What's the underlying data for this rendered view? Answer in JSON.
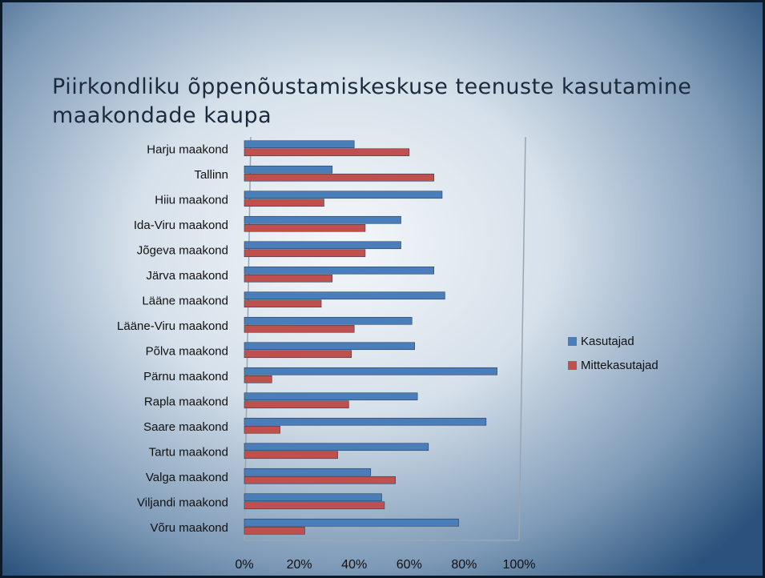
{
  "chart_data": {
    "type": "hbar",
    "title": "Piirkondliku õppenõustamiskeskuse teenuste kasutamine maakondade kaupa",
    "categories": [
      "Harju maakond",
      "Tallinn",
      "Hiiu maakond",
      "Ida-Viru maakond",
      "Jõgeva maakond",
      "Järva maakond",
      "Lääne maakond",
      "Lääne-Viru maakond",
      "Põlva maakond",
      "Pärnu maakond",
      "Rapla maakond",
      "Saare maakond",
      "Tartu maakond",
      "Valga maakond",
      "Viljandi maakond",
      "Võru maakond"
    ],
    "series": [
      {
        "name": "Kasutajad",
        "color": "#4a7ebb",
        "values": [
          40,
          32,
          72,
          57,
          57,
          69,
          73,
          61,
          62,
          92,
          63,
          88,
          67,
          46,
          50,
          78
        ]
      },
      {
        "name": "Mittekasutajad",
        "color": "#c0504d",
        "values": [
          60,
          69,
          29,
          44,
          44,
          32,
          28,
          40,
          39,
          10,
          38,
          13,
          34,
          55,
          51,
          22
        ]
      }
    ],
    "xlim": [
      0,
      100
    ],
    "xticks": [
      {
        "value": 0,
        "label": "0%"
      },
      {
        "value": 20,
        "label": "20%"
      },
      {
        "value": 40,
        "label": "40%"
      },
      {
        "value": 60,
        "label": "60%"
      },
      {
        "value": 80,
        "label": "80%"
      },
      {
        "value": 100,
        "label": "100%"
      }
    ],
    "grid": false,
    "legend": "right"
  }
}
